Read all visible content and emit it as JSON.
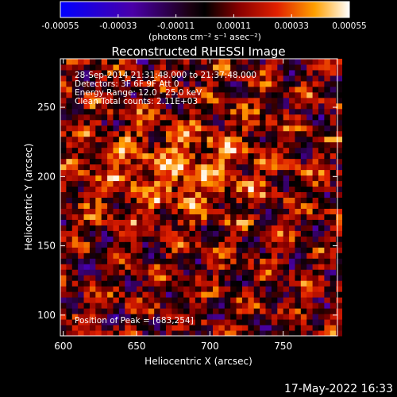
{
  "chart_data": {
    "type": "heatmap",
    "title": "Reconstructed RHESSI Image",
    "xlabel": "Heliocentric X (arcsec)",
    "ylabel": "Heliocentric Y (arcsec)",
    "xlim": [
      598,
      787
    ],
    "ylim": [
      85,
      285
    ],
    "xticks": [
      600,
      650,
      700,
      750
    ],
    "yticks": [
      100,
      150,
      200,
      250
    ],
    "colorbar": {
      "ticks": [
        "-0.00055",
        "-0.00033",
        "-0.00011",
        "0.00011",
        "0.00033",
        "0.00055"
      ],
      "range": [
        -0.00055,
        0.00055
      ],
      "units_label": "(photons cm⁻² s⁻¹ asec⁻²)"
    },
    "annotations": [
      "28-Sep-2014 21:31:48.000 to 21:37:48.000",
      "Detectors: 3F 6F 9F  Att 0",
      "Energy Range: 12.0 - 25.0 keV",
      "Clean     Total counts: 2.11E+03"
    ],
    "peak_text": "Position of Peak = [683,254]",
    "peak": [
      683,
      254
    ],
    "bright_region": {
      "x": [
        640,
        720
      ],
      "y": [
        185,
        225
      ]
    }
  },
  "footer_date": "17-May-2022 16:33"
}
